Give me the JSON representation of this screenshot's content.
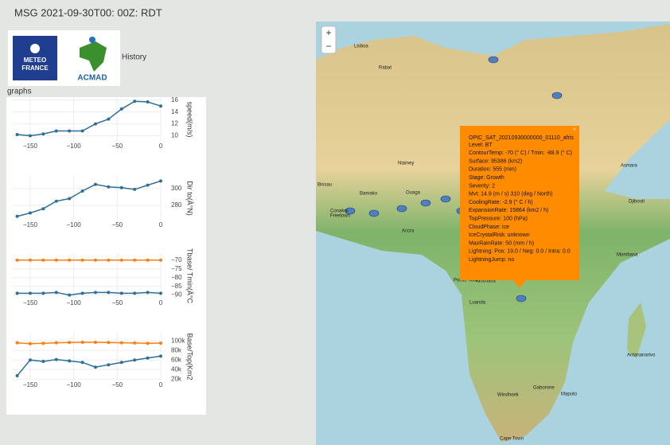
{
  "header": {
    "title": "MSG 2021-09-30T00: 00Z: RDT",
    "logos": [
      "METEO",
      "FRANCE",
      "ACMAD"
    ],
    "history": "History",
    "graphs": "graphs"
  },
  "chart_data": [
    {
      "type": "line",
      "ylabel": "speed(m/s)",
      "grid": true,
      "x": [
        -165,
        -150,
        -135,
        -120,
        -105,
        -90,
        -75,
        -60,
        -45,
        -30,
        -15,
        0
      ],
      "xlim": [
        -171,
        0
      ],
      "xticks": [
        {
          "value": -150,
          "label": "−150"
        },
        {
          "value": -100,
          "label": "−100"
        },
        {
          "value": -50,
          "label": "−50"
        },
        0
      ],
      "ylim": [
        9,
        16.5
      ],
      "yticks": [
        10,
        12,
        14,
        16
      ],
      "series": [
        {
          "color": "#2e6f9a",
          "values": [
            10.2,
            10.0,
            10.3,
            10.8,
            10.8,
            10.8,
            12.0,
            12.8,
            14.5,
            15.8,
            15.7,
            15.0
          ]
        }
      ]
    },
    {
      "type": "line",
      "ylabel": "Dir to(Â°N)",
      "grid": true,
      "x": [
        -165,
        -150,
        -135,
        -120,
        -105,
        -90,
        -75,
        -60,
        -45,
        -30,
        -15,
        0
      ],
      "xlim": [
        -171,
        0
      ],
      "xticks": [
        {
          "value": -150,
          "label": "−150"
        },
        {
          "value": -100,
          "label": "−100"
        },
        {
          "value": -50,
          "label": "−50"
        },
        0
      ],
      "ylim": [
        262,
        315
      ],
      "yticks": [
        280,
        300
      ],
      "series": [
        {
          "color": "#2e6f9a",
          "values": [
            267,
            271,
            276,
            285,
            288,
            297,
            305,
            302,
            301,
            299,
            304,
            309
          ]
        }
      ]
    },
    {
      "type": "line",
      "ylabel": "Tbase/ Tmin(Â°C",
      "grid": true,
      "x": [
        -165,
        -150,
        -135,
        -120,
        -105,
        -90,
        -75,
        -60,
        -45,
        -30,
        -15,
        0
      ],
      "xlim": [
        -171,
        0
      ],
      "xticks": [
        {
          "value": -150,
          "label": "−150"
        },
        {
          "value": -100,
          "label": "−100"
        },
        {
          "value": -50,
          "label": "−50"
        },
        0
      ],
      "ylim": [
        -92,
        -66
      ],
      "yticks": [
        {
          "value": -70,
          "label": "−70"
        },
        {
          "value": -75,
          "label": "−75"
        },
        {
          "value": -80,
          "label": "−80"
        },
        {
          "value": -85,
          "label": "−85"
        },
        {
          "value": -90,
          "label": "−90"
        }
      ],
      "series": [
        {
          "color": "#ff7f0e",
          "values": [
            -70,
            -70,
            -70,
            -70,
            -70,
            -70,
            -70,
            -70,
            -70,
            -70,
            -70,
            -70
          ]
        },
        {
          "color": "#2e6f9a",
          "values": [
            -89,
            -89,
            -89,
            -88.5,
            -90,
            -89,
            -88.5,
            -88.5,
            -89,
            -89,
            -88.5,
            -89
          ]
        }
      ]
    },
    {
      "type": "line",
      "ylabel": "Base/Top(Km2",
      "grid": true,
      "x": [
        -165,
        -150,
        -135,
        -120,
        -105,
        -90,
        -75,
        -60,
        -45,
        -30,
        -15,
        0
      ],
      "xlim": [
        -171,
        0
      ],
      "xticks": [
        {
          "value": -150,
          "label": "−150"
        },
        {
          "value": -100,
          "label": "−100"
        },
        {
          "value": -50,
          "label": "−50"
        },
        0
      ],
      "ylim": [
        17000,
        117000
      ],
      "yticks": [
        {
          "value": 100000,
          "label": "100k"
        },
        {
          "value": 80000,
          "label": "80k"
        },
        {
          "value": 60000,
          "label": "60k"
        },
        {
          "value": 40000,
          "label": "40k"
        },
        {
          "value": 20000,
          "label": "20k"
        }
      ],
      "series": [
        {
          "color": "#ff7f0e",
          "values": [
            96000,
            94000,
            95000,
            96000,
            96500,
            97000,
            97000,
            96500,
            96000,
            95500,
            95000,
            95386
          ]
        },
        {
          "color": "#2e6f9a",
          "values": [
            27000,
            60000,
            57000,
            61000,
            58000,
            55000,
            45000,
            50000,
            55000,
            60000,
            64000,
            68000
          ]
        }
      ]
    }
  ],
  "map": {
    "zoom": [
      "+",
      "−"
    ],
    "places": [
      "Lisboa",
      "Rabat",
      "Bamako",
      "Ouaga",
      "Bissau",
      "Conakry",
      "Freetown",
      "Accra",
      "Niamey",
      "Kinshasa",
      "Brazzaville",
      "Pointe Noire",
      "Luanda",
      "Windhoek",
      "Gaborone",
      "Maputo",
      "Cape Town",
      "Djibouti",
      "Asmara",
      "Antananarivo",
      "Mombasa"
    ],
    "popup": {
      "close": "×",
      "title": "OPIC_SAT_20210930000000_01110_afris",
      "lines": [
        "Level: BT",
        "ContourTemp: -70 (° C) / Tmin: -88.9 (° C)",
        "Surface: 95386 (km2)",
        "Duration: 555 (min)",
        "Stage: Growth",
        "Severity: 2",
        "Mvt: 14.9 (m / s) 310 (deg / North)",
        "CoolingRate: -2.9 (° C / h)",
        "ExpansionRate: 15864 (km2 / h)",
        "TopPressure: 100 (hPa)",
        "CloudPhase: ice",
        "IceCrystalRisk: unknown",
        "MaxRainRate: 50 (mm / h)",
        "Lightning: Pos: 19.0 / Neg: 0.0 / Intra: 0.0",
        "LightningJump: no"
      ]
    }
  }
}
